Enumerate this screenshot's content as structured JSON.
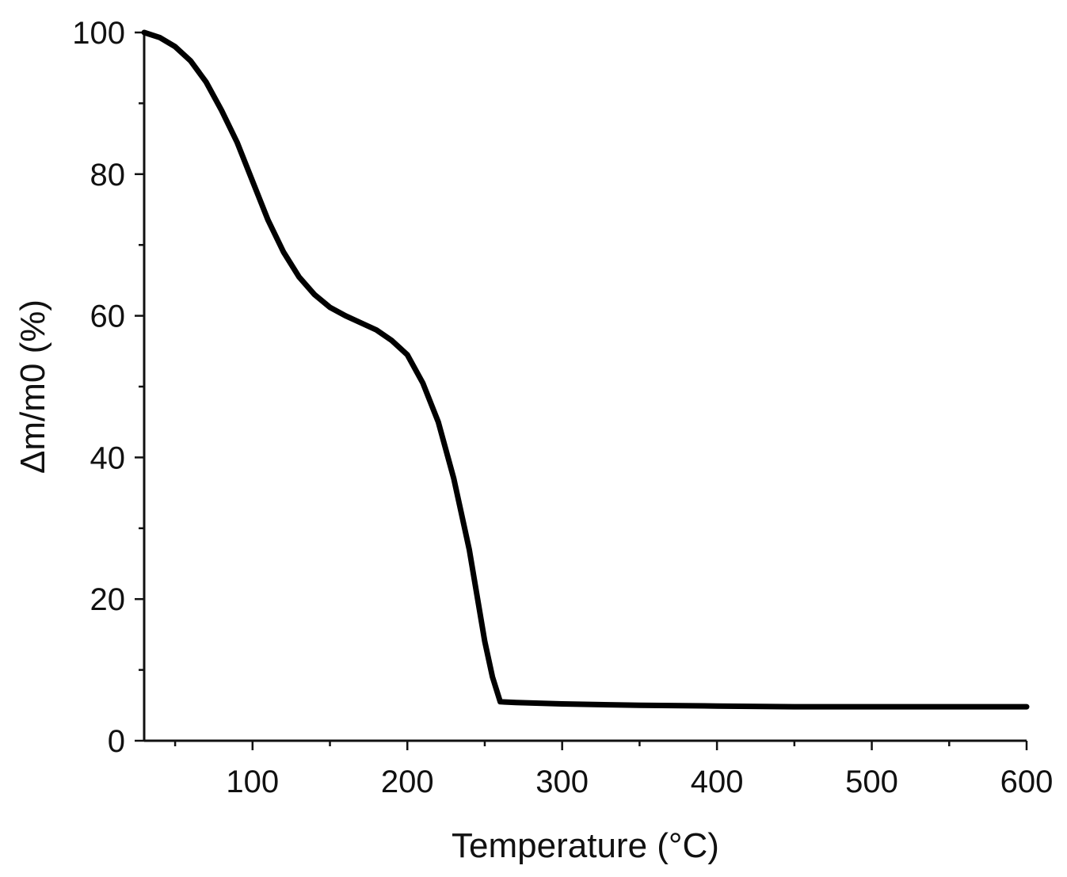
{
  "chart_data": {
    "type": "line",
    "title": "",
    "xlabel": "Temperature (°C)",
    "ylabel": "Δm/m0 (%)",
    "xlim": [
      30,
      600
    ],
    "ylim": [
      0,
      100
    ],
    "x_ticks": [
      100,
      200,
      300,
      400,
      500,
      600
    ],
    "x_minor_ticks": [
      50,
      150,
      250,
      350,
      450,
      550
    ],
    "y_ticks": [
      0,
      20,
      40,
      60,
      80,
      100
    ],
    "y_minor_ticks": [
      10,
      30,
      50,
      70,
      90
    ],
    "grid": false,
    "legend": "none",
    "line_color": "#000000",
    "series": [
      {
        "x": [
          30,
          40,
          50,
          60,
          70,
          80,
          90,
          100,
          110,
          120,
          130,
          140,
          150,
          160,
          170,
          180,
          190,
          200,
          210,
          220,
          230,
          240,
          250,
          255,
          260,
          270,
          300,
          350,
          400,
          450,
          500,
          550,
          600
        ],
        "y": [
          100,
          99.3,
          98,
          96,
          93,
          89,
          84.5,
          79,
          73.5,
          69,
          65.5,
          63,
          61.2,
          60,
          59,
          58,
          56.5,
          54.5,
          50.5,
          45,
          37,
          27,
          14,
          9,
          5.5,
          5.4,
          5.2,
          5.0,
          4.9,
          4.8,
          4.8,
          4.8,
          4.8
        ]
      }
    ]
  }
}
